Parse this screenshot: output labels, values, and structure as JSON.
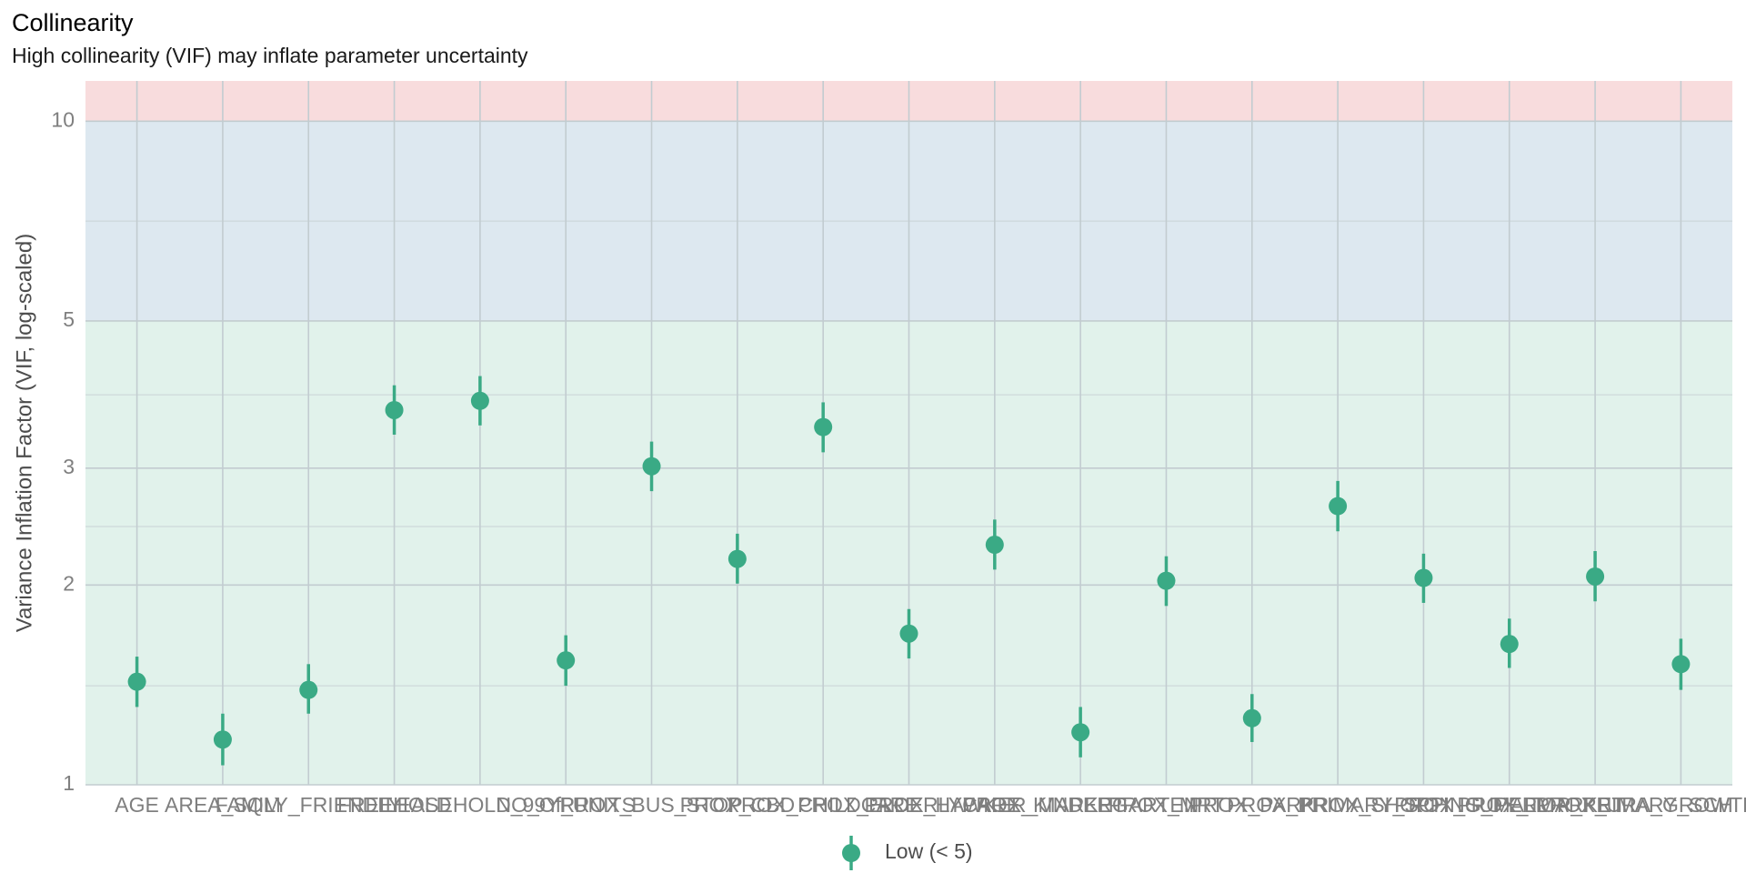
{
  "chart_data": {
    "type": "dot-errorbar",
    "title": "Collinearity",
    "subtitle": "High collinearity (VIF) may inflate parameter uncertainty",
    "y_label": "Variance Inflation Factor (VIF, log-scaled)",
    "y_scale": "log",
    "categories": [
      "AGE",
      "AREA_SQM",
      "FAMILY_FRIENDLY",
      "FREEHOLD",
      "LEASEHOLD_99YR",
      "NO_Of_UNITS",
      "PROX_BUS_STOP",
      "PROX_CBD",
      "PROX_CHILDCARE",
      "PROX_ELDERLYCARE",
      "PROX_HAWKER_MARKET",
      "PROX_KINDERGARTEN",
      "PROX_MRT",
      "PROX_PARK",
      "PROX_PRIMARY_SCH",
      "PROX_SHOPPING_MALL",
      "PROX_SUPERMARKET",
      "PROX_TOP_PRIMARY_SCH",
      "PROX_URA_GROWTH_AREA"
    ],
    "series": [
      {
        "name": "Low (< 5)",
        "color": "#3aaa85",
        "values": [
          1.43,
          1.17,
          1.39,
          3.67,
          3.79,
          1.54,
          3.02,
          2.19,
          3.46,
          1.69,
          2.3,
          1.2,
          2.03,
          1.26,
          2.63,
          2.05,
          1.63,
          2.06,
          1.52
        ],
        "ci_low": [
          1.31,
          1.07,
          1.28,
          3.37,
          3.48,
          1.41,
          2.77,
          2.01,
          3.17,
          1.55,
          2.11,
          1.1,
          1.86,
          1.16,
          2.41,
          1.88,
          1.5,
          1.89,
          1.39
        ],
        "ci_high": [
          1.56,
          1.28,
          1.52,
          4.0,
          4.13,
          1.68,
          3.29,
          2.39,
          3.77,
          1.84,
          2.51,
          1.31,
          2.21,
          1.37,
          2.87,
          2.23,
          1.78,
          2.25,
          1.66
        ]
      }
    ],
    "ylim": [
      1,
      11.5
    ],
    "yticks": [
      1,
      2,
      3,
      5,
      10
    ],
    "yminor": [
      1.41,
      2.45,
      3.87,
      7.07
    ],
    "grid": true,
    "thresholds": [
      5,
      10
    ],
    "band_colors": [
      "#e1f2eb",
      "#dde8f0",
      "#f8dcdd"
    ],
    "legend": "bottom"
  }
}
